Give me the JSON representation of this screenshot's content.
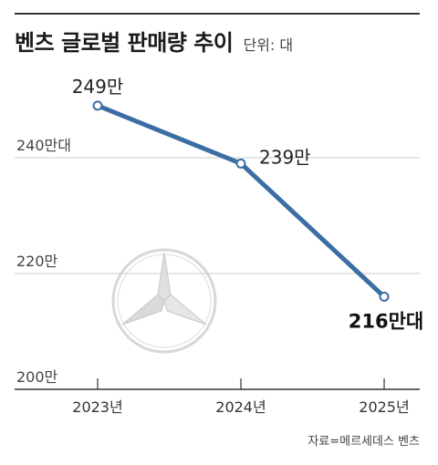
{
  "header": {
    "title": "벤츠 글로벌 판매량 추이",
    "unit": "단위: 대"
  },
  "chart_data": {
    "type": "line",
    "title": "벤츠 글로벌 판매량 추이",
    "unit": "단위: 대",
    "x": [
      "2023년",
      "2024년",
      "2025년"
    ],
    "series": [
      {
        "values": [
          249,
          239,
          216
        ],
        "labels": [
          "249만",
          "239만",
          "216만대"
        ]
      }
    ],
    "y_ticks": [
      {
        "value": 200,
        "label": "200만"
      },
      {
        "value": 220,
        "label": "220만"
      },
      {
        "value": 240,
        "label": "240만대"
      }
    ],
    "ylim": [
      200,
      255
    ],
    "grid": true,
    "colors": {
      "line": "#3a6ea5",
      "grid": "#cccccc",
      "axis": "#333333"
    },
    "background_logo": "mercedes-benz-star"
  },
  "footer": {
    "source": "자료=메르세데스 벤츠"
  }
}
